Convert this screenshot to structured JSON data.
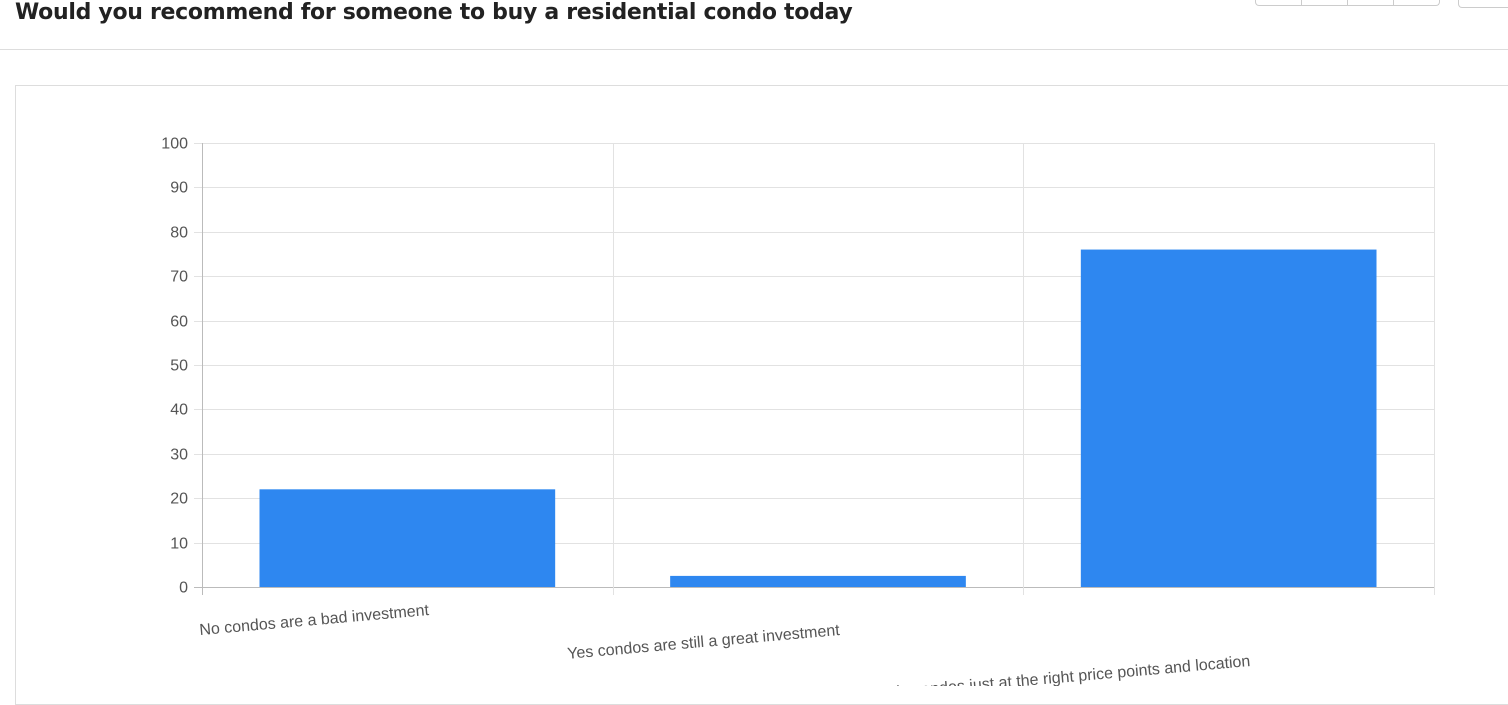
{
  "header": {
    "title": "Would you recommend for someone to buy a residential condo today"
  },
  "chart_data": {
    "type": "bar",
    "categories": [
      "No condos are a bad investment",
      "Yes condos are still a great investment",
      "There are still opportunities in condos just at the right price points and location"
    ],
    "values": [
      22,
      2.5,
      76
    ],
    "ylim": [
      0,
      100
    ],
    "yticks": [
      0,
      10,
      20,
      30,
      40,
      50,
      60,
      70,
      80,
      90,
      100
    ],
    "grid": true,
    "bar_color": "#2e87f0"
  }
}
